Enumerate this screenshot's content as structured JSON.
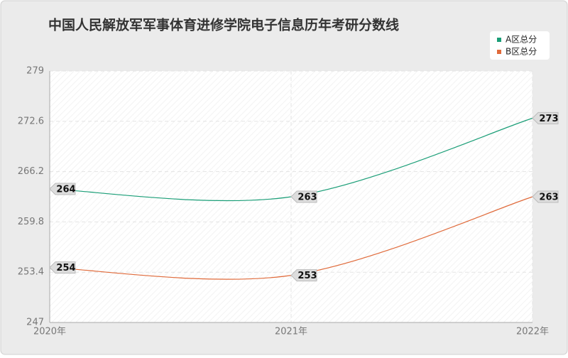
{
  "chart_data": {
    "type": "line",
    "title": "中国人民解放军军事体育进修学院电子信息历年考研分数线",
    "categories": [
      "2020年",
      "2021年",
      "2022年"
    ],
    "series": [
      {
        "name": "A区总分",
        "color": "#1a9e77",
        "values": [
          264,
          263,
          273
        ]
      },
      {
        "name": "B区总分",
        "color": "#e06a3a",
        "values": [
          254,
          253,
          263
        ]
      }
    ],
    "ylim": [
      247,
      279
    ],
    "yticks": [
      247,
      253.4,
      259.8,
      266.2,
      272.6,
      279
    ],
    "grid": true,
    "smooth": true,
    "legend": "top-right"
  }
}
